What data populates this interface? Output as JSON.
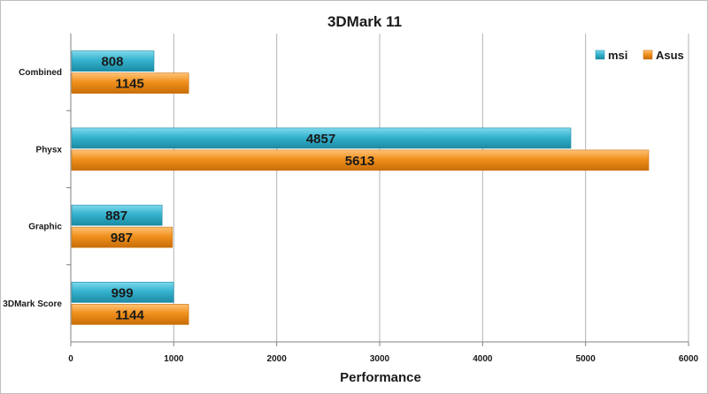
{
  "chart_data": {
    "type": "bar",
    "orientation": "horizontal",
    "title": "3DMark 11",
    "xlabel": "Performance",
    "ylabel": "",
    "xlim": [
      0,
      6000
    ],
    "xticks": [
      0,
      1000,
      2000,
      3000,
      4000,
      5000,
      6000
    ],
    "grid": true,
    "legend_position": "top-right",
    "categories": [
      "Combined",
      "Physx",
      "Graphic",
      "3DMark Score"
    ],
    "series": [
      {
        "name": "msi",
        "color": "#35b3cf",
        "values": [
          808,
          4857,
          887,
          999
        ]
      },
      {
        "name": "Asus",
        "color": "#f0901c",
        "values": [
          1145,
          5613,
          987,
          1144
        ]
      }
    ]
  }
}
